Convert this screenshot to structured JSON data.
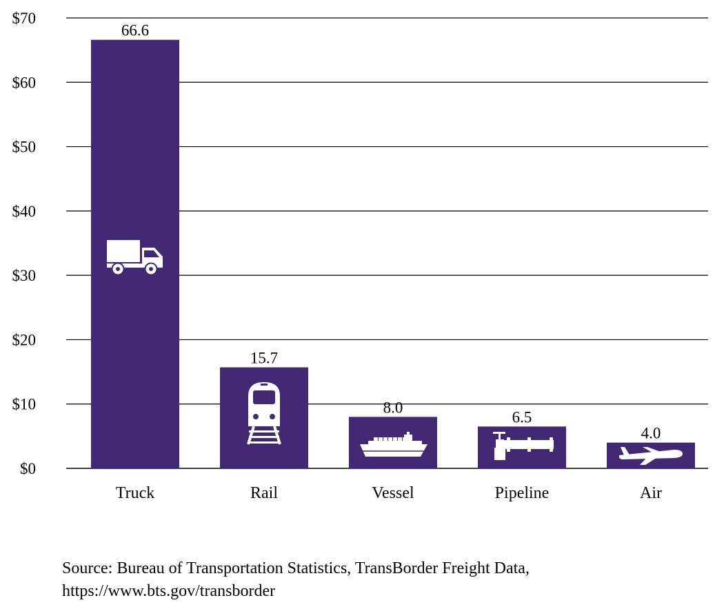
{
  "chart_data": {
    "type": "bar",
    "categories": [
      "Truck",
      "Rail",
      "Vessel",
      "Pipeline",
      "Air"
    ],
    "values": [
      66.6,
      15.7,
      8.0,
      6.5,
      4.0
    ],
    "value_labels": [
      "66.6",
      "15.7",
      "8.0",
      "6.5",
      "4.0"
    ],
    "icons": [
      "truck-icon",
      "train-icon",
      "ship-icon",
      "pipeline-icon",
      "airplane-icon"
    ],
    "ylim": [
      0,
      70
    ],
    "yticks": [
      0,
      10,
      20,
      30,
      40,
      50,
      60,
      70
    ],
    "ytick_labels": [
      "$0",
      "$10",
      "$20",
      "$30",
      "$40",
      "$50",
      "$60",
      "$70"
    ],
    "grid": true,
    "bar_color": "#432874",
    "title": "",
    "xlabel": "",
    "ylabel": ""
  },
  "source": {
    "line1": "Source: Bureau of Transportation Statistics, TransBorder Freight Data,",
    "line2": "https://www.bts.gov/transborder"
  }
}
